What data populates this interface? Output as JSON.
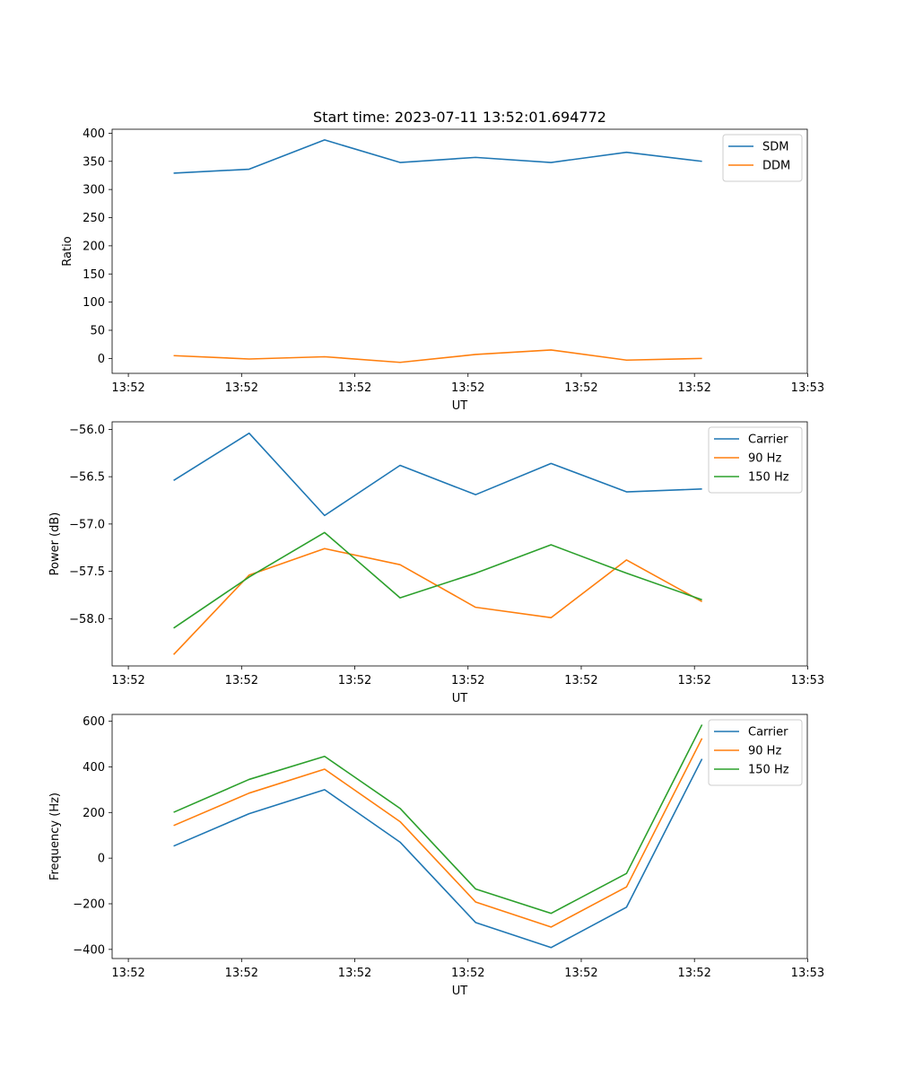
{
  "figure": {
    "title": "Start time: 2023-07-11 13:52:01.694772"
  },
  "colors": {
    "blue": "#1f77b4",
    "orange": "#ff7f0e",
    "green": "#2ca02c"
  },
  "chart_data": [
    {
      "type": "line",
      "title": "Start time: 2023-07-11 13:52:01.694772",
      "xlabel": "UT",
      "ylabel": "Ratio",
      "x": [
        1,
        2,
        3,
        4,
        5,
        6,
        7,
        8
      ],
      "xlim": [
        0.185,
        9.395
      ],
      "xticks": [
        0.4,
        1.9,
        3.4,
        4.9,
        6.4,
        7.9,
        9.4
      ],
      "xtick_labels": [
        "13:52",
        "13:52",
        "13:52",
        "13:52",
        "13:52",
        "13:52",
        "13:53"
      ],
      "ylim": [
        -26.5,
        407
      ],
      "yticks": [
        0,
        50,
        100,
        150,
        200,
        250,
        300,
        350,
        400
      ],
      "ytick_labels": [
        "0",
        "50",
        "100",
        "150",
        "200",
        "250",
        "300",
        "350",
        "400"
      ],
      "legend_position": "top-right",
      "series": [
        {
          "name": "SDM",
          "color": "#1f77b4",
          "values": [
            329,
            336,
            388,
            348,
            357,
            348,
            366,
            350
          ]
        },
        {
          "name": "DDM",
          "color": "#ff7f0e",
          "values": [
            5,
            -1,
            3,
            -7,
            7,
            15,
            -3,
            0
          ]
        }
      ]
    },
    {
      "type": "line",
      "xlabel": "UT",
      "ylabel": "Power (dB)",
      "x": [
        1,
        2,
        3,
        4,
        5,
        6,
        7,
        8
      ],
      "xlim": [
        0.185,
        9.395
      ],
      "xticks": [
        0.4,
        1.9,
        3.4,
        4.9,
        6.4,
        7.9,
        9.4
      ],
      "xtick_labels": [
        "13:52",
        "13:52",
        "13:52",
        "13:52",
        "13:52",
        "13:52",
        "13:53"
      ],
      "ylim": [
        -58.5,
        -55.92
      ],
      "yticks": [
        -58.0,
        -57.5,
        -57.0,
        -56.5,
        -56.0
      ],
      "ytick_labels": [
        "−58.0",
        "−57.5",
        "−57.0",
        "−56.5",
        "−56.0"
      ],
      "legend_position": "top-right",
      "series": [
        {
          "name": "Carrier",
          "color": "#1f77b4",
          "values": [
            -56.54,
            -56.04,
            -56.91,
            -56.38,
            -56.69,
            -56.36,
            -56.66,
            -56.63
          ]
        },
        {
          "name": "90 Hz",
          "color": "#ff7f0e",
          "values": [
            -58.38,
            -57.54,
            -57.26,
            -57.43,
            -57.88,
            -57.99,
            -57.38,
            -57.82
          ]
        },
        {
          "name": "150 Hz",
          "color": "#2ca02c",
          "values": [
            -58.1,
            -57.56,
            -57.09,
            -57.78,
            -57.52,
            -57.22,
            -57.52,
            -57.8
          ]
        }
      ]
    },
    {
      "type": "line",
      "xlabel": "UT",
      "ylabel": "Frequency (Hz)",
      "x": [
        1,
        2,
        3,
        4,
        5,
        6,
        7,
        8
      ],
      "xlim": [
        0.185,
        9.395
      ],
      "xticks": [
        0.4,
        1.9,
        3.4,
        4.9,
        6.4,
        7.9,
        9.4
      ],
      "xtick_labels": [
        "13:52",
        "13:52",
        "13:52",
        "13:52",
        "13:52",
        "13:52",
        "13:53"
      ],
      "ylim": [
        -440,
        630
      ],
      "yticks": [
        -400,
        -200,
        0,
        200,
        400,
        600
      ],
      "ytick_labels": [
        "−400",
        "−200",
        "0",
        "200",
        "400",
        "600"
      ],
      "legend_position": "top-right",
      "series": [
        {
          "name": "Carrier",
          "color": "#1f77b4",
          "values": [
            53,
            195,
            300,
            70,
            -282,
            -392,
            -215,
            435
          ]
        },
        {
          "name": "90 Hz",
          "color": "#ff7f0e",
          "values": [
            143,
            285,
            390,
            160,
            -192,
            -302,
            -126,
            525
          ]
        },
        {
          "name": "150 Hz",
          "color": "#2ca02c",
          "values": [
            201,
            345,
            446,
            218,
            -135,
            -242,
            -67,
            585
          ]
        }
      ]
    }
  ]
}
